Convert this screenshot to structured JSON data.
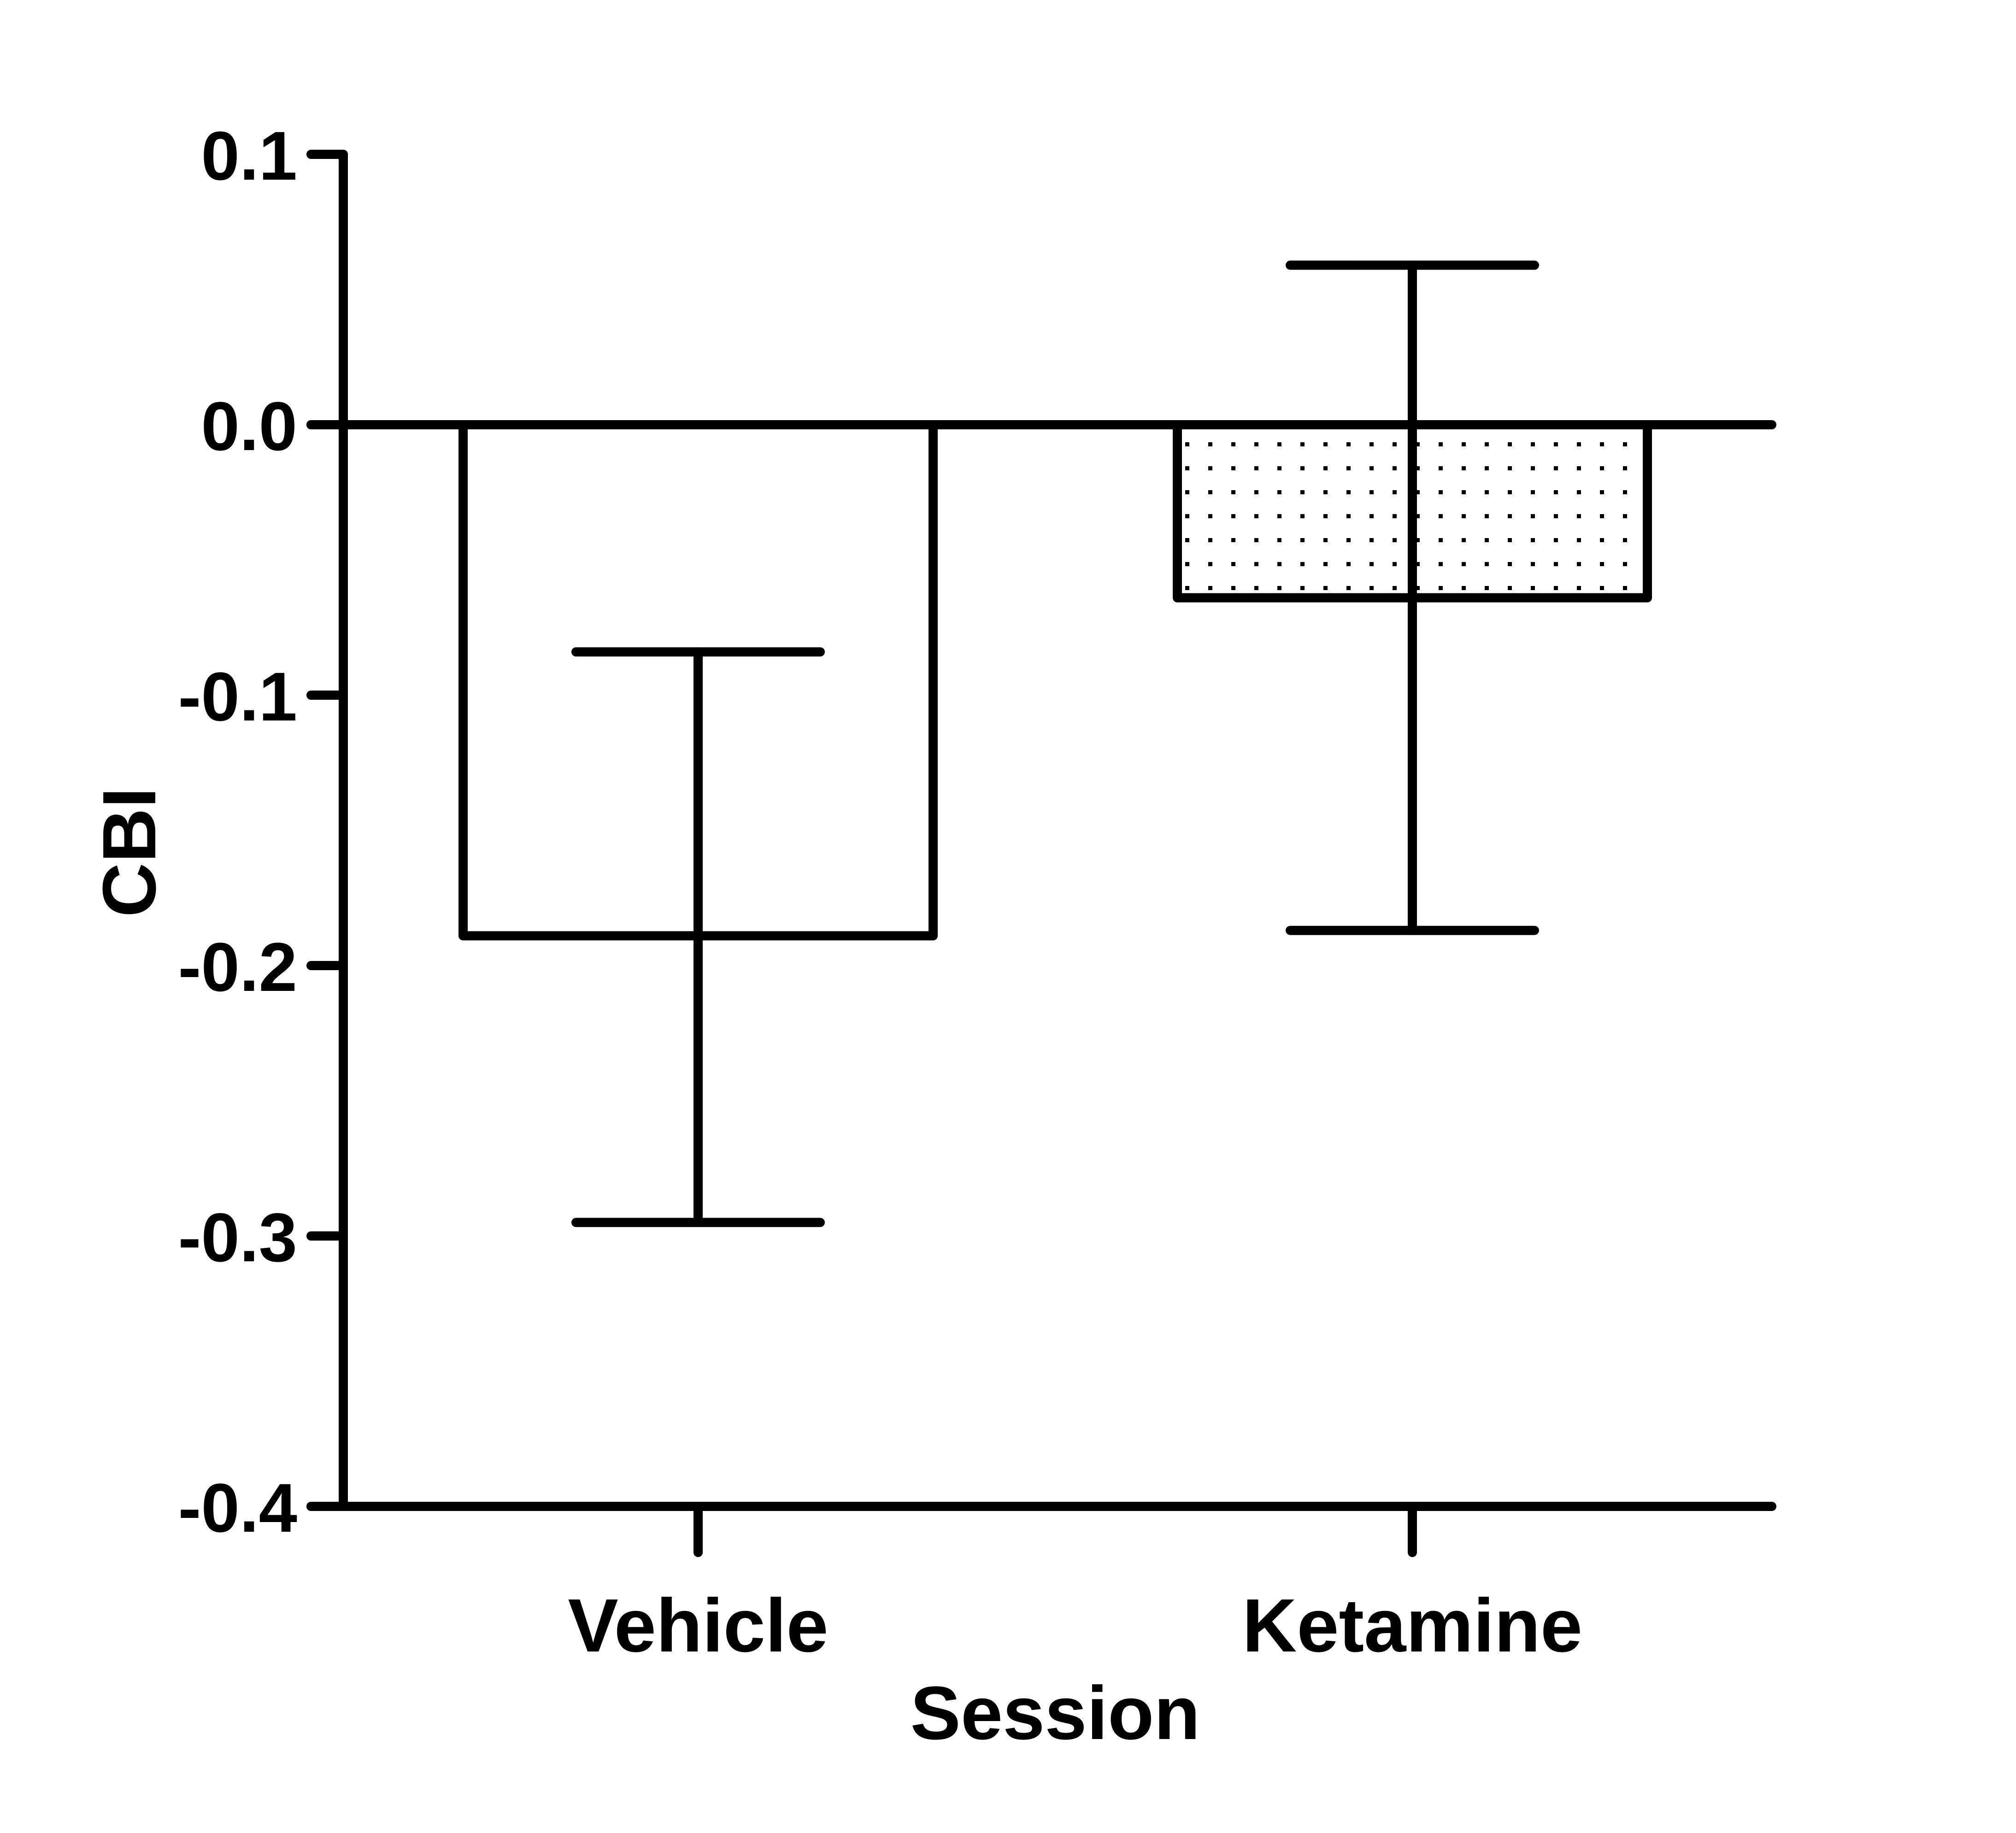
{
  "chart_data": {
    "type": "bar",
    "title": "",
    "xlabel": "Session",
    "ylabel": "CBI",
    "ylim": [
      -0.4,
      0.1
    ],
    "yticks": [
      0.1,
      0.0,
      -0.1,
      -0.2,
      -0.3,
      -0.4
    ],
    "ytick_labels": [
      "0.1",
      "0.0",
      "-0.1",
      "-0.2",
      "-0.3",
      "-0.4"
    ],
    "categories": [
      "Vehicle",
      "Ketamine"
    ],
    "values": [
      -0.189,
      -0.064
    ],
    "error_bars": [
      {
        "upper": -0.084,
        "lower": -0.295
      },
      {
        "upper": 0.059,
        "lower": -0.187
      }
    ],
    "bar_fills": [
      "none",
      "dotted"
    ],
    "grid": false,
    "colors": {
      "stroke": "#000000",
      "background": "#ffffff"
    }
  }
}
